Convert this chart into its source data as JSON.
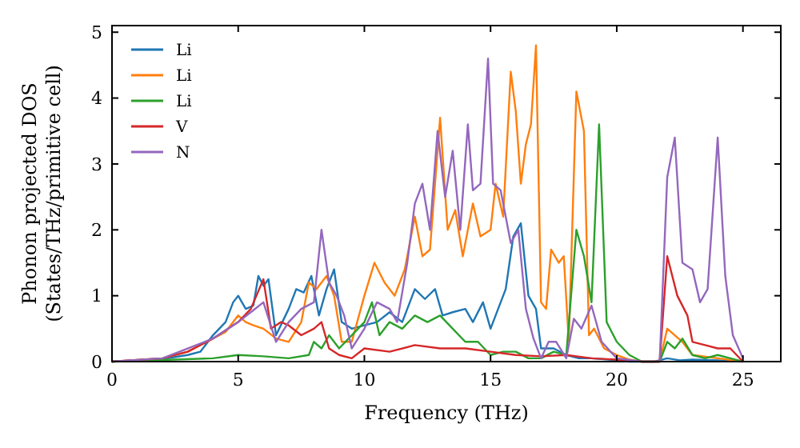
{
  "chart_data": {
    "type": "line",
    "xlabel": "Frequency (THz)",
    "ylabel": "Phonon projected DOS\n(States/THz/primitive cell)",
    "xlim": [
      0,
      26.5
    ],
    "ylim": [
      0,
      5.1
    ],
    "xticks": [
      0,
      5,
      10,
      15,
      20,
      25
    ],
    "yticks": [
      0,
      1,
      2,
      3,
      4,
      5
    ],
    "legend": "top left",
    "grid": false,
    "marker": "none",
    "line_style": "solid",
    "series": [
      {
        "name": "Li",
        "color": "#1f77b4",
        "x": [
          0,
          2,
          3,
          3.5,
          4,
          4.5,
          4.8,
          5,
          5.3,
          5.6,
          5.8,
          6,
          6.2,
          6.5,
          7,
          7.3,
          7.6,
          7.9,
          8.2,
          8.5,
          8.8,
          9.1,
          9.5,
          10,
          10.5,
          11,
          11.5,
          12,
          12.4,
          12.8,
          13.1,
          13.5,
          14,
          14.3,
          14.7,
          15,
          15.3,
          15.6,
          15.9,
          16.2,
          16.5,
          16.8,
          17,
          17.5,
          18,
          18.5,
          19,
          20,
          20.5,
          21.5,
          22,
          22.5,
          23,
          24,
          25
        ],
        "values": [
          0,
          0.04,
          0.1,
          0.15,
          0.4,
          0.6,
          0.9,
          1.0,
          0.8,
          0.85,
          1.3,
          1.15,
          1.25,
          0.4,
          0.8,
          1.1,
          1.05,
          1.3,
          0.7,
          1.1,
          1.4,
          0.6,
          0.5,
          0.55,
          0.6,
          0.75,
          0.6,
          1.1,
          0.95,
          1.1,
          0.7,
          0.75,
          0.8,
          0.6,
          0.9,
          0.5,
          0.8,
          1.1,
          1.9,
          2.1,
          1.0,
          0.8,
          0.2,
          0.2,
          0.1,
          0.05,
          0.05,
          0.02,
          0,
          0,
          0.05,
          0.02,
          0.03,
          0.02,
          0
        ]
      },
      {
        "name": "Li",
        "color": "#ff7f0e",
        "x": [
          0,
          2,
          3,
          4,
          4.5,
          5,
          5.3,
          5.6,
          6,
          6.5,
          7,
          7.5,
          7.8,
          8.1,
          8.5,
          8.8,
          9.1,
          9.5,
          10,
          10.4,
          10.8,
          11.2,
          11.6,
          12,
          12.3,
          12.6,
          13,
          13.3,
          13.6,
          13.9,
          14.3,
          14.6,
          15,
          15.2,
          15.5,
          15.8,
          16,
          16.2,
          16.4,
          16.6,
          16.8,
          17,
          17.2,
          17.4,
          17.7,
          17.9,
          18.1,
          18.4,
          18.7,
          18.9,
          19.1,
          19.5,
          20,
          20.5,
          21,
          21.7,
          22,
          22.3,
          22.6,
          23,
          24,
          25
        ],
        "values": [
          0,
          0.05,
          0.15,
          0.35,
          0.45,
          0.7,
          0.6,
          0.55,
          0.5,
          0.35,
          0.3,
          0.6,
          1.2,
          1.1,
          1.3,
          1.0,
          0.3,
          0.3,
          1.0,
          1.5,
          1.2,
          1.0,
          1.4,
          2.2,
          1.6,
          1.7,
          3.7,
          2.0,
          2.3,
          1.6,
          2.4,
          1.9,
          2.0,
          2.7,
          2.2,
          4.4,
          3.8,
          2.7,
          3.3,
          3.6,
          4.8,
          0.9,
          0.8,
          1.7,
          1.5,
          1.6,
          0.3,
          4.1,
          3.5,
          0.4,
          0.5,
          0.2,
          0.1,
          0.03,
          0,
          0,
          0.5,
          0.4,
          0.3,
          0.1,
          0.05,
          0
        ]
      },
      {
        "name": "Li",
        "color": "#2ca02c",
        "x": [
          0,
          4,
          5,
          6,
          7,
          7.8,
          8,
          8.3,
          8.6,
          9,
          9.5,
          10,
          10.3,
          10.6,
          11,
          11.5,
          12,
          12.5,
          13,
          13.5,
          14,
          14.5,
          15,
          15.5,
          16,
          16.5,
          17,
          17.5,
          18,
          18.4,
          18.7,
          19,
          19.3,
          19.6,
          20,
          20.5,
          21,
          21.7,
          22,
          22.3,
          22.6,
          23,
          23.5,
          24,
          24.5,
          25
        ],
        "values": [
          0,
          0.05,
          0.1,
          0.08,
          0.05,
          0.1,
          0.3,
          0.2,
          0.4,
          0.2,
          0.4,
          0.6,
          0.9,
          0.4,
          0.6,
          0.5,
          0.7,
          0.6,
          0.7,
          0.5,
          0.3,
          0.3,
          0.1,
          0.15,
          0.15,
          0.05,
          0.05,
          0.15,
          0.1,
          2.0,
          1.6,
          0.9,
          3.6,
          0.6,
          0.3,
          0.1,
          0,
          0,
          0.3,
          0.2,
          0.35,
          0.1,
          0.05,
          0.1,
          0.05,
          0
        ]
      },
      {
        "name": "V",
        "color": "#d62728",
        "x": [
          0,
          2,
          3,
          4,
          5,
          5.5,
          6,
          6.3,
          6.7,
          7,
          7.5,
          8,
          8.3,
          8.6,
          9,
          9.5,
          10,
          11,
          12,
          13,
          14,
          15,
          16,
          17,
          18,
          19,
          20,
          21,
          21.7,
          22,
          22.4,
          22.8,
          23,
          23.5,
          24,
          24.5,
          25
        ],
        "values": [
          0,
          0.05,
          0.15,
          0.35,
          0.6,
          0.8,
          1.25,
          0.5,
          0.6,
          0.55,
          0.4,
          0.5,
          0.6,
          0.2,
          0.1,
          0.05,
          0.2,
          0.15,
          0.25,
          0.2,
          0.2,
          0.15,
          0.1,
          0.08,
          0.1,
          0.05,
          0.03,
          0,
          0,
          1.6,
          1.0,
          0.7,
          0.3,
          0.25,
          0.2,
          0.2,
          0
        ]
      },
      {
        "name": "N",
        "color": "#9467bd",
        "x": [
          0,
          2,
          3,
          4,
          5,
          5.5,
          6,
          6.5,
          7,
          7.5,
          8,
          8.3,
          8.6,
          8.9,
          9.2,
          9.5,
          10,
          10.5,
          11,
          11.3,
          11.7,
          12,
          12.3,
          12.6,
          12.9,
          13.2,
          13.5,
          13.8,
          14.1,
          14.3,
          14.6,
          14.9,
          15.1,
          15.4,
          15.8,
          16.1,
          16.4,
          16.7,
          17,
          17.3,
          17.6,
          18,
          18.3,
          18.6,
          19,
          19.4,
          20,
          21,
          21.7,
          22,
          22.3,
          22.6,
          23,
          23.3,
          23.6,
          24,
          24.3,
          24.6,
          25
        ],
        "values": [
          0,
          0.05,
          0.2,
          0.35,
          0.6,
          0.75,
          0.9,
          0.3,
          0.6,
          0.8,
          0.9,
          2.0,
          1.2,
          1.0,
          0.7,
          0.2,
          0.5,
          0.9,
          0.8,
          0.6,
          1.5,
          2.4,
          2.7,
          2.0,
          3.5,
          2.5,
          3.2,
          2.0,
          3.6,
          2.6,
          2.7,
          4.6,
          2.7,
          2.6,
          1.8,
          2.0,
          0.8,
          0.35,
          0.05,
          0.3,
          0.3,
          0.05,
          0.65,
          0.5,
          0.85,
          0.3,
          0.05,
          0,
          0,
          2.8,
          3.4,
          1.5,
          1.4,
          0.9,
          1.1,
          3.4,
          1.3,
          0.4,
          0.05
        ]
      }
    ]
  }
}
